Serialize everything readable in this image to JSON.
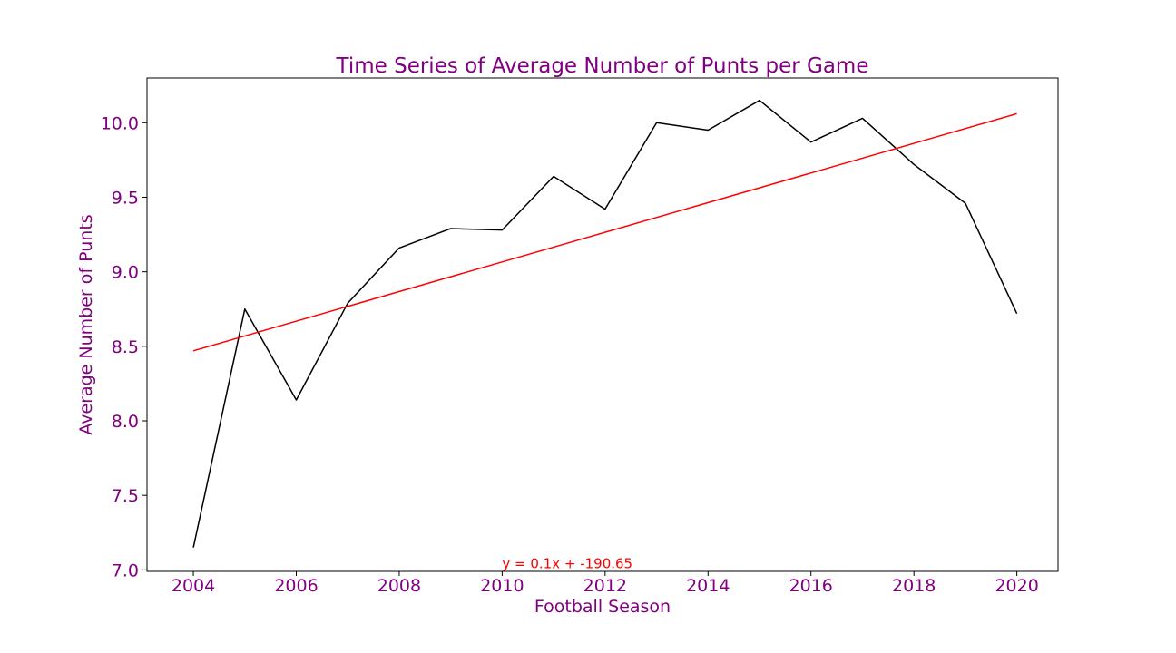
{
  "chart_data": {
    "type": "line",
    "title": "Time Series of Average Number of Punts per Game",
    "xlabel": "Football Season",
    "ylabel": "Average Number of Punts",
    "xlim": [
      2003.1,
      2020.8
    ],
    "ylim": [
      6.99,
      10.3
    ],
    "x_ticks": [
      2004,
      2006,
      2008,
      2010,
      2012,
      2014,
      2016,
      2018,
      2020
    ],
    "x_tick_labels": [
      "2004",
      "2006",
      "2008",
      "2010",
      "2012",
      "2014",
      "2016",
      "2018",
      "2020"
    ],
    "y_ticks": [
      7.0,
      7.5,
      8.0,
      8.5,
      9.0,
      9.5,
      10.0
    ],
    "y_tick_labels": [
      "7.0",
      "7.5",
      "8.0",
      "8.5",
      "9.0",
      "9.5",
      "10.0"
    ],
    "grid": false,
    "series": [
      {
        "color": "#000000",
        "x": [
          2004,
          2005,
          2006,
          2007,
          2008,
          2009,
          2010,
          2011,
          2012,
          2013,
          2014,
          2015,
          2016,
          2017,
          2018,
          2019,
          2020
        ],
        "y": [
          7.15,
          8.75,
          8.14,
          8.79,
          9.16,
          9.29,
          9.28,
          9.64,
          9.42,
          10.0,
          9.95,
          10.15,
          9.87,
          10.03,
          9.72,
          9.46,
          8.72
        ]
      },
      {
        "color": "#ff0000",
        "x": [
          2004,
          2020
        ],
        "y": [
          8.47,
          10.06
        ]
      }
    ],
    "annotations": [
      {
        "text": "y = 0.1x + -190.65",
        "x": 2010,
        "y": 7.01,
        "color": "#ff0000"
      }
    ],
    "text_color": "#800080"
  }
}
